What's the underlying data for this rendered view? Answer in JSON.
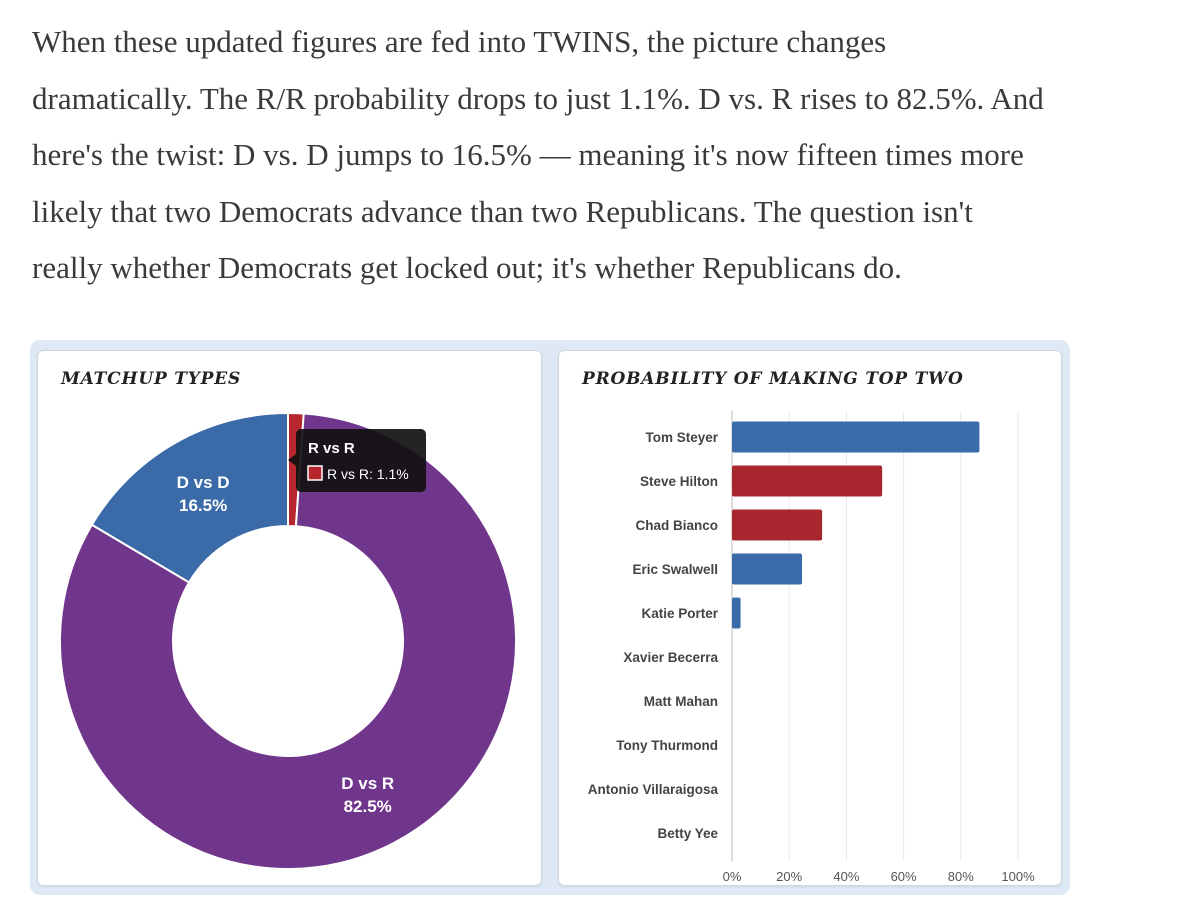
{
  "article": {
    "lines": [
      "When these updated figures are fed into TWINS, the picture changes",
      "dramatically. The R/R probability drops to just 1.1%. D vs. R rises to 82.5%. And",
      "here's the twist: D vs. D jumps to 16.5% — meaning it's now fifteen times more",
      "likely that two Democrats advance than two Republicans. The question isn't",
      "really whether Democrats get locked out; it's whether Republicans do."
    ]
  },
  "chart_data": [
    {
      "type": "pie",
      "title": "MATCHUP TYPES",
      "categories": [
        "R vs R",
        "D vs R",
        "D vs D"
      ],
      "values": [
        1.1,
        82.5,
        16.5
      ],
      "value_labels": [
        "",
        "82.5%",
        "16.5%"
      ],
      "colors": [
        "#b5262d",
        "#70368c",
        "#3a6aa8"
      ],
      "donut": true,
      "tooltip": {
        "title": "R vs R",
        "body": "R vs R: 1.1%"
      }
    },
    {
      "type": "bar",
      "orientation": "horizontal",
      "title": "PROBABILITY OF MAKING TOP TWO",
      "categories": [
        "Tom Steyer",
        "Steve Hilton",
        "Chad Bianco",
        "Eric Swalwell",
        "Katie Porter",
        "Xavier Becerra",
        "Matt Mahan",
        "Tony Thurmond",
        "Antonio Villaraigosa",
        "Betty Yee"
      ],
      "values": [
        86.5,
        52.5,
        31.5,
        24.5,
        3.0,
        0,
        0,
        0,
        0,
        0
      ],
      "colors": [
        "#3a6aa8",
        "#a8272e",
        "#a8272e",
        "#3a6aa8",
        "#3a6aa8",
        "#3a6aa8",
        "#3a6aa8",
        "#3a6aa8",
        "#3a6aa8",
        "#3a6aa8"
      ],
      "xlim": [
        0,
        100
      ],
      "xticks": [
        "0%",
        "20%",
        "40%",
        "60%",
        "80%",
        "100%"
      ],
      "grid": true
    }
  ]
}
